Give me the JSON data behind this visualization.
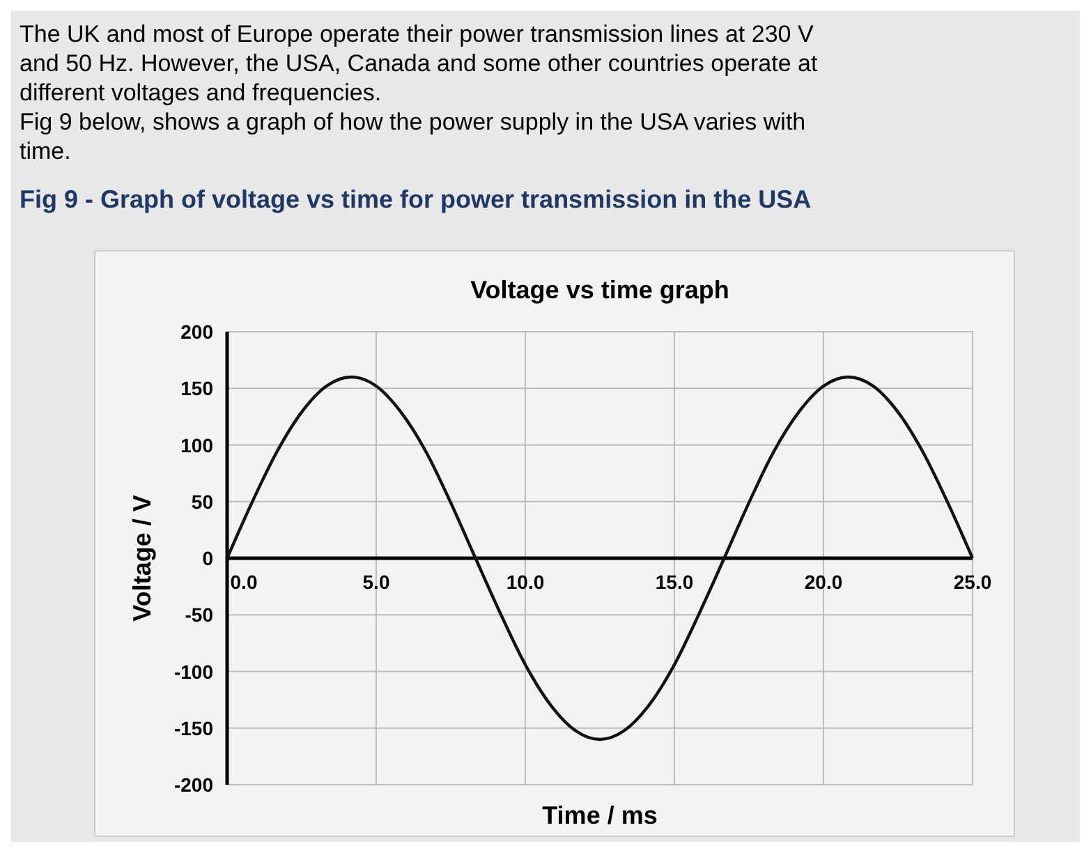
{
  "chart_data": {
    "type": "line",
    "title": "Voltage vs time graph",
    "xlabel": "Time / ms",
    "ylabel": "Voltage / V",
    "annotations": [
      "The UK and most of Europe operate their power transmission lines at 230 V and 50 Hz. However, the USA, Canada and some other countries operate at different voltages and frequencies.",
      "Fig 9 below, shows a graph of how the power supply in the USA varies with time.",
      "Fig 9 - Graph of voltage vs time for power transmission in the USA"
    ],
    "x": [
      0,
      0.83,
      1.67,
      2.5,
      3.33,
      4.17,
      5,
      5.83,
      6.67,
      7.5,
      8.33,
      9.17,
      10,
      10.83,
      11.67,
      12.5,
      13.33,
      14.17,
      15,
      15.83,
      16.67,
      17.5,
      18.33,
      19.17,
      20,
      20.83,
      21.67,
      22.5,
      23.33,
      24.17,
      25
    ],
    "series": [
      {
        "color": "#111111",
        "values": [
          0,
          49,
          94,
          129,
          152,
          160,
          152,
          129,
          94,
          49,
          0,
          -49,
          -94,
          -129,
          -152,
          -160,
          -152,
          -129,
          -94,
          -49,
          0,
          49,
          94,
          129,
          152,
          160,
          152,
          129,
          94,
          49,
          0
        ]
      }
    ],
    "xlim": [
      0,
      25
    ],
    "xticks": [
      {
        "value": 0,
        "label": "0.0"
      },
      {
        "value": 5,
        "label": "5.0"
      },
      {
        "value": 10,
        "label": "10.0"
      },
      {
        "value": 15,
        "label": "15.0"
      },
      {
        "value": 20,
        "label": "20.0"
      },
      {
        "value": 25,
        "label": "25.0"
      }
    ],
    "ylim": [
      -200,
      200
    ],
    "yticks": [
      -200,
      -150,
      -100,
      -50,
      0,
      50,
      100,
      150,
      200
    ],
    "grid": true,
    "marker": "none",
    "line_style": "solid"
  }
}
